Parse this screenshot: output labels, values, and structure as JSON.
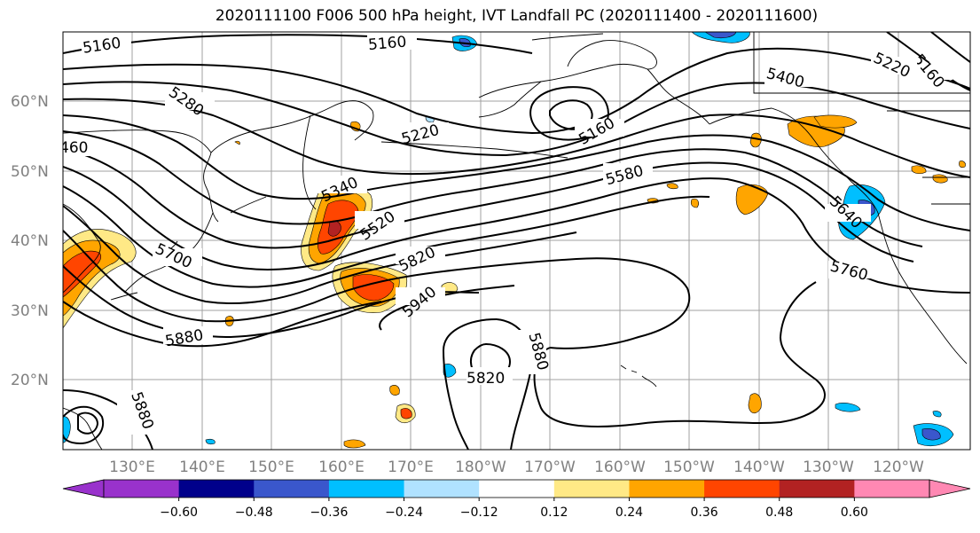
{
  "title": "2020111100 F006 500 hPa height, IVT Landfall PC (2020111400 - 2020111600)",
  "lat_labels": [
    "60°N",
    "50°N",
    "40°N",
    "30°N",
    "20°N"
  ],
  "lon_labels": [
    "130°E",
    "140°E",
    "150°E",
    "160°E",
    "170°E",
    "180°W",
    "170°W",
    "160°W",
    "150°W",
    "140°W",
    "130°W",
    "120°W"
  ],
  "contour_labels": {
    "c5160a": "5160",
    "c5160b": "5160",
    "c5160c": "5160",
    "c5160d": "5160",
    "c5280": "5280",
    "c5220a": "5220",
    "c5220b": "5220",
    "c5400": "5400",
    "c5340": "5340",
    "c5520": "5520",
    "c5580": "5580",
    "c5640": "5640",
    "c5700": "5700",
    "c5820a": "5820",
    "c5820b": "5820",
    "c5940": "5940",
    "c5760": "5760",
    "c5880a": "5880",
    "c5880b": "5880",
    "c5880c": "5880",
    "c460": "460"
  },
  "colorbar": {
    "colors": [
      "#9932cc",
      "#00008b",
      "#3a57cc",
      "#00bfff",
      "#b0e2ff",
      "#ffffff",
      "#ffe986",
      "#ffa500",
      "#ff4500",
      "#b22222",
      "#ff88b3"
    ],
    "ticks": [
      "−0.60",
      "−0.48",
      "−0.36",
      "−0.24",
      "−0.12",
      "0.12",
      "0.24",
      "0.36",
      "0.48",
      "0.60"
    ]
  },
  "shade_colors": {
    "pos1": "#ffe986",
    "pos2": "#ffa500",
    "pos3": "#ff4500",
    "pos4": "#b22222",
    "neg1": "#b0e2ff",
    "neg2": "#00bfff",
    "neg3": "#3a57cc"
  }
}
